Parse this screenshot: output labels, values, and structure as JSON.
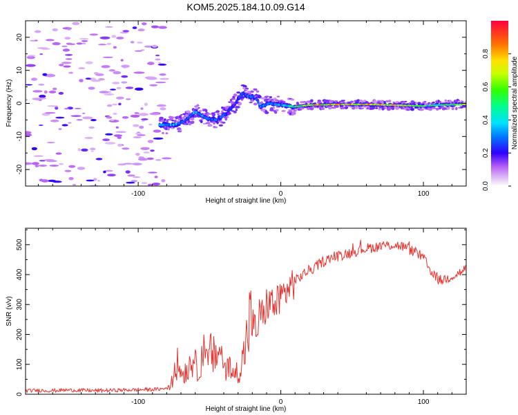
{
  "figure_title": "KOM5.2025.184.10.09.G14",
  "chart_data": [
    {
      "type": "heatmap",
      "xlabel": "Height of straight line (km)",
      "ylabel": "Frequency (Hz)",
      "xlim": [
        -179,
        130
      ],
      "ylim": [
        -25,
        25
      ],
      "x_ticks": [
        -100,
        0,
        100
      ],
      "y_ticks": [
        -20,
        -10,
        0,
        10,
        20
      ],
      "grid": false,
      "colorbar": {
        "label": "Normalized spectral amplitude",
        "ticks": [
          0.0,
          0.2,
          0.4,
          0.6,
          0.8
        ],
        "range": [
          0,
          1
        ],
        "colormap": "rainbow"
      },
      "signal_trace": {
        "x": [
          -85,
          -75,
          -68,
          -60,
          -52,
          -45,
          -38,
          -32,
          -27,
          -22,
          -18,
          -14,
          -8,
          0,
          10,
          20,
          40,
          60,
          80,
          100,
          110,
          130
        ],
        "frequency": [
          -6.5,
          -6.5,
          -5.5,
          -2.5,
          -4.5,
          -5,
          -3,
          0,
          3,
          2,
          2,
          -1,
          0,
          -0.5,
          -1,
          -0.5,
          -0.3,
          -0.3,
          -0.5,
          -0.8,
          -0.5,
          -0.3
        ],
        "amplitude": [
          0.3,
          0.35,
          0.3,
          0.35,
          0.3,
          0.3,
          0.25,
          0.2,
          0.25,
          0.3,
          0.3,
          0.3,
          0.3,
          0.35,
          0.5,
          0.7,
          0.8,
          0.75,
          0.7,
          0.55,
          0.5,
          0.6
        ]
      },
      "noise_region_x": [
        -179,
        -80
      ]
    },
    {
      "type": "line",
      "xlabel": "Height of straight line (km)",
      "ylabel": "SNR (v/v)",
      "xlim": [
        -179,
        130
      ],
      "ylim": [
        0,
        555
      ],
      "x_ticks": [
        -100,
        0,
        100
      ],
      "y_ticks": [
        0,
        100,
        200,
        300,
        400,
        500
      ],
      "grid": false,
      "series": [
        {
          "color": "#e8312c",
          "x": [
            -179,
            -170,
            -160,
            -150,
            -140,
            -130,
            -120,
            -110,
            -100,
            -90,
            -82,
            -78,
            -75,
            -72,
            -70,
            -66,
            -62,
            -58,
            -55,
            -52,
            -49,
            -46,
            -43,
            -40,
            -37,
            -34,
            -31,
            -28,
            -25,
            -22,
            -19,
            -17,
            -15,
            -12,
            -10,
            -7,
            -4,
            -1,
            3,
            8,
            13,
            18,
            23,
            28,
            35,
            42,
            50,
            57,
            63,
            70,
            78,
            85,
            92,
            96,
            100,
            104,
            108,
            111,
            115,
            120,
            125,
            130
          ],
          "y": [
            12,
            13,
            12,
            14,
            13,
            12,
            13,
            14,
            15,
            16,
            18,
            25,
            60,
            110,
            70,
            80,
            120,
            75,
            150,
            100,
            140,
            120,
            160,
            90,
            110,
            60,
            75,
            90,
            150,
            250,
            230,
            200,
            270,
            260,
            300,
            310,
            290,
            320,
            340,
            370,
            390,
            410,
            420,
            440,
            455,
            465,
            475,
            485,
            490,
            495,
            500,
            495,
            480,
            470,
            455,
            420,
            400,
            380,
            385,
            395,
            405,
            420
          ]
        }
      ]
    }
  ]
}
